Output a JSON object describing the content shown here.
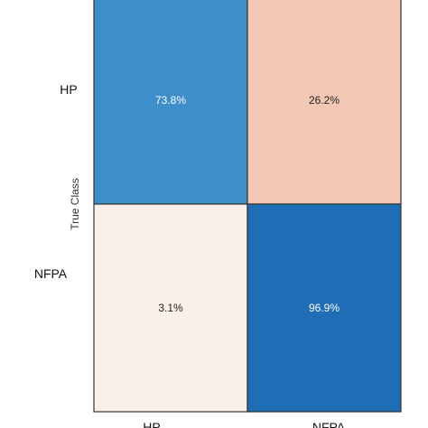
{
  "chart_data": {
    "type": "heatmap",
    "title": "",
    "ylabel": "True Class",
    "xlabel": "",
    "rows": [
      "HP",
      "NFPA"
    ],
    "columns": [
      "HP",
      "NFPA"
    ],
    "values": [
      [
        73.8,
        26.2
      ],
      [
        3.1,
        96.9
      ]
    ],
    "cell_labels": [
      [
        "73.8%",
        "26.2%"
      ],
      [
        "3.1%",
        "96.9%"
      ]
    ],
    "cell_colors": [
      [
        "#3d8ec9",
        "#f2c8b4"
      ],
      [
        "#fbefea",
        "#1f6db4"
      ]
    ],
    "text_colors": [
      [
        "#ffffff",
        "#222222"
      ],
      [
        "#222222",
        "#ffffff"
      ]
    ],
    "border_color": "#333333"
  }
}
